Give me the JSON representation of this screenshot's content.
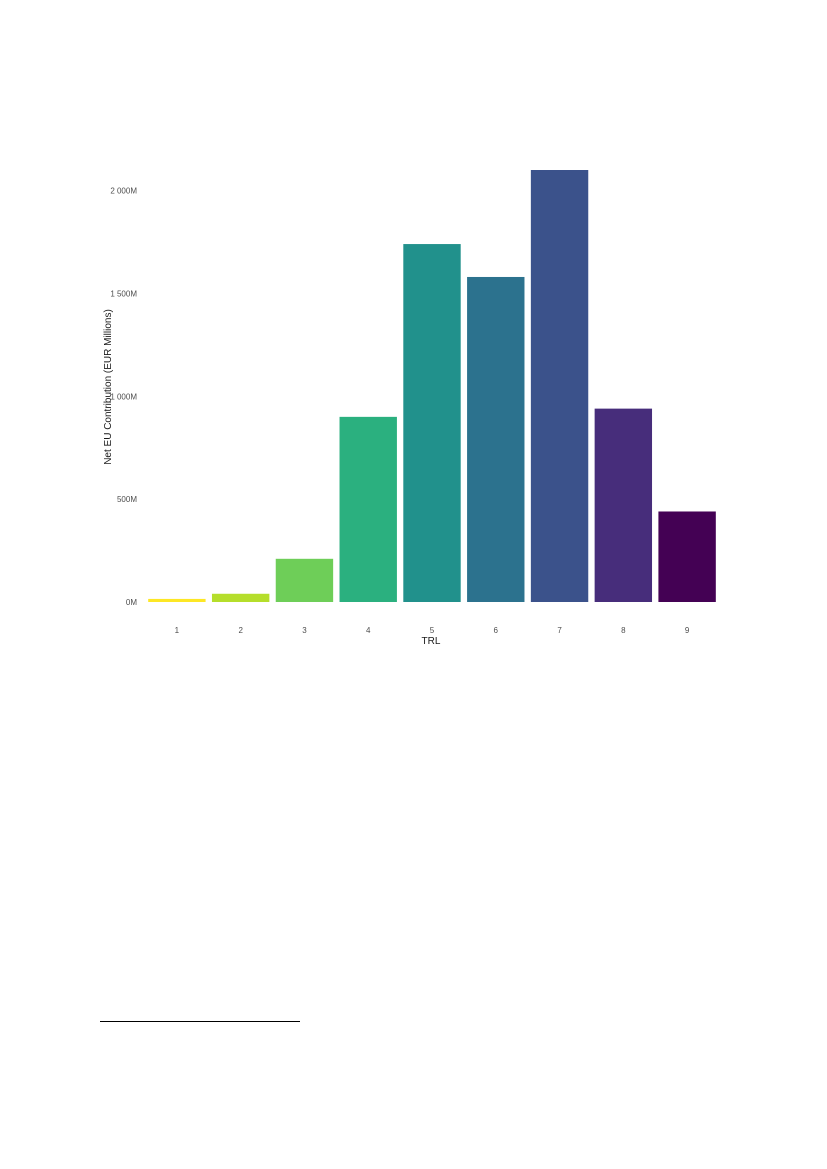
{
  "chart_data": {
    "type": "bar",
    "title": "",
    "xlabel": "TRL",
    "ylabel": "Net EU Contribution (EUR Millions)",
    "categories": [
      "1",
      "2",
      "3",
      "4",
      "5",
      "6",
      "7",
      "8",
      "9"
    ],
    "values": [
      15,
      40,
      210,
      900,
      1740,
      1580,
      2100,
      940,
      440
    ],
    "colors": [
      "#fde725",
      "#b5de2b",
      "#6ece58",
      "#2bb07f",
      "#21918c",
      "#2c728e",
      "#3b528b",
      "#472d7b",
      "#440154"
    ],
    "ylim": [
      0,
      2100
    ],
    "yticks": [
      0,
      500,
      1000,
      1500,
      2000
    ],
    "ytick_labels": [
      "0M",
      "500M",
      "1 000M",
      "1 500M",
      "2 000M"
    ],
    "grid": false,
    "legend": "none"
  }
}
